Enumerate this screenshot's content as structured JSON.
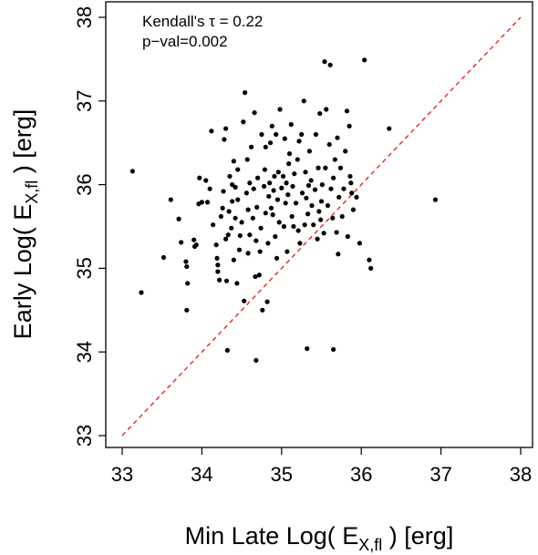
{
  "chart_data": {
    "type": "scatter",
    "title": "",
    "xlabel": "Min Late Log( E_{X,fl} ) [erg]",
    "ylabel": "Early Log( E_{X,fl} ) [erg]",
    "xlabel_parts": {
      "pre": "Min Late Log( E",
      "sub": "X,fl",
      "post": " ) [erg]"
    },
    "ylabel_parts": {
      "pre": "Early Log( E",
      "sub": "X,fl",
      "post": " ) [erg]"
    },
    "xlim": [
      33,
      38
    ],
    "ylim": [
      33,
      38
    ],
    "xticks": [
      33,
      34,
      35,
      36,
      37,
      38
    ],
    "yticks": [
      33,
      34,
      35,
      36,
      37,
      38
    ],
    "grid": false,
    "legend": "none",
    "reference_line": {
      "style": "dashed",
      "color": "#ee2222",
      "from": [
        33,
        33
      ],
      "to": [
        38,
        38
      ]
    },
    "annotations": [
      "Kendall's τ = 0.22",
      "p−val=0.002"
    ],
    "point_color": "#000000",
    "points": [
      [
        33.13,
        36.16
      ],
      [
        33.24,
        34.71
      ],
      [
        33.52,
        35.13
      ],
      [
        33.61,
        35.82
      ],
      [
        33.71,
        35.59
      ],
      [
        33.74,
        35.31
      ],
      [
        33.8,
        35.08
      ],
      [
        33.81,
        35.02
      ],
      [
        33.82,
        34.82
      ],
      [
        33.81,
        34.5
      ],
      [
        33.9,
        35.34
      ],
      [
        33.91,
        35.26
      ],
      [
        33.93,
        35.28
      ],
      [
        33.96,
        35.77
      ],
      [
        33.97,
        36.08
      ],
      [
        34.0,
        35.79
      ],
      [
        34.05,
        36.05
      ],
      [
        34.07,
        35.79
      ],
      [
        34.1,
        35.95
      ],
      [
        34.12,
        36.64
      ],
      [
        34.14,
        35.52
      ],
      [
        34.18,
        35.28
      ],
      [
        34.19,
        35.12
      ],
      [
        34.2,
        35.04
      ],
      [
        34.2,
        34.96
      ],
      [
        34.22,
        34.86
      ],
      [
        34.24,
        35.62
      ],
      [
        34.26,
        35.72
      ],
      [
        34.27,
        35.92
      ],
      [
        34.28,
        36.54
      ],
      [
        34.3,
        36.67
      ],
      [
        34.3,
        35.35
      ],
      [
        34.32,
        34.02
      ],
      [
        34.31,
        34.85
      ],
      [
        34.33,
        35.4
      ],
      [
        34.35,
        36.1
      ],
      [
        34.37,
        35.48
      ],
      [
        34.38,
        35.8
      ],
      [
        34.38,
        36.0
      ],
      [
        34.4,
        36.28
      ],
      [
        34.4,
        35.1
      ],
      [
        34.42,
        35.6
      ],
      [
        34.42,
        35.97
      ],
      [
        34.44,
        34.82
      ],
      [
        34.45,
        35.82
      ],
      [
        34.45,
        36.18
      ],
      [
        34.48,
        35.39
      ],
      [
        34.5,
        35.55
      ],
      [
        34.52,
        36.75
      ],
      [
        34.54,
        37.1
      ],
      [
        34.53,
        34.61
      ],
      [
        34.56,
        35.9
      ],
      [
        34.57,
        36.3
      ],
      [
        34.58,
        35.18
      ],
      [
        34.58,
        35.7
      ],
      [
        34.6,
        36.02
      ],
      [
        34.6,
        35.4
      ],
      [
        34.62,
        36.45
      ],
      [
        34.64,
        35.6
      ],
      [
        34.65,
        35.95
      ],
      [
        34.66,
        36.86
      ],
      [
        34.67,
        34.9
      ],
      [
        34.68,
        33.9
      ],
      [
        34.69,
        35.73
      ],
      [
        34.7,
        36.08
      ],
      [
        34.72,
        34.92
      ],
      [
        34.73,
        35.2
      ],
      [
        34.74,
        35.48
      ],
      [
        34.75,
        36.6
      ],
      [
        34.76,
        34.5
      ],
      [
        34.78,
        35.98
      ],
      [
        34.79,
        36.18
      ],
      [
        34.8,
        35.66
      ],
      [
        34.8,
        36.45
      ],
      [
        34.82,
        34.6
      ],
      [
        34.83,
        35.3
      ],
      [
        34.84,
        35.86
      ],
      [
        34.85,
        36.02
      ],
      [
        34.86,
        36.5
      ],
      [
        34.87,
        35.72
      ],
      [
        34.88,
        36.7
      ],
      [
        34.9,
        35.93
      ],
      [
        34.91,
        36.1
      ],
      [
        34.92,
        35.38
      ],
      [
        34.93,
        36.6
      ],
      [
        34.94,
        35.12
      ],
      [
        34.95,
        35.82
      ],
      [
        34.96,
        36.15
      ],
      [
        34.97,
        35.55
      ],
      [
        34.98,
        36.9
      ],
      [
        35.0,
        35.96
      ],
      [
        35.02,
        36.1
      ],
      [
        35.03,
        35.5
      ],
      [
        35.04,
        36.55
      ],
      [
        35.05,
        35.78
      ],
      [
        35.06,
        36.02
      ],
      [
        35.07,
        35.2
      ],
      [
        35.08,
        35.88
      ],
      [
        35.1,
        36.37
      ],
      [
        35.12,
        36.72
      ],
      [
        35.13,
        35.62
      ],
      [
        35.14,
        35.98
      ],
      [
        35.15,
        35.5
      ],
      [
        35.16,
        36.13
      ],
      [
        35.18,
        35.78
      ],
      [
        35.2,
        36.3
      ],
      [
        35.21,
        35.45
      ],
      [
        35.22,
        36.52
      ],
      [
        35.23,
        35.3
      ],
      [
        35.25,
        36.6
      ],
      [
        35.26,
        35.9
      ],
      [
        35.28,
        37.0
      ],
      [
        35.29,
        35.52
      ],
      [
        35.3,
        36.15
      ],
      [
        35.31,
        35.84
      ],
      [
        35.32,
        34.04
      ],
      [
        35.33,
        35.65
      ],
      [
        35.35,
        36.4
      ],
      [
        35.37,
        36.05
      ],
      [
        35.38,
        35.75
      ],
      [
        35.4,
        35.52
      ],
      [
        35.42,
        35.94
      ],
      [
        35.43,
        36.6
      ],
      [
        35.45,
        35.35
      ],
      [
        35.46,
        36.2
      ],
      [
        35.48,
        36.85
      ],
      [
        35.49,
        35.58
      ],
      [
        35.5,
        35.8
      ],
      [
        35.51,
        36.0
      ],
      [
        35.53,
        35.42
      ],
      [
        35.54,
        37.47
      ],
      [
        35.55,
        36.2
      ],
      [
        35.56,
        36.9
      ],
      [
        35.58,
        35.75
      ],
      [
        35.6,
        36.48
      ],
      [
        35.61,
        37.43
      ],
      [
        35.62,
        35.95
      ],
      [
        35.64,
        35.6
      ],
      [
        35.65,
        36.08
      ],
      [
        35.65,
        34.03
      ],
      [
        35.67,
        36.3
      ],
      [
        35.69,
        35.43
      ],
      [
        35.7,
        36.56
      ],
      [
        35.72,
        35.85
      ],
      [
        35.74,
        36.2
      ],
      [
        35.76,
        35.62
      ],
      [
        35.78,
        35.95
      ],
      [
        35.8,
        36.4
      ],
      [
        35.82,
        36.88
      ],
      [
        35.83,
        35.38
      ],
      [
        35.85,
        36.7
      ],
      [
        35.86,
        36.1
      ],
      [
        35.87,
        36.02
      ],
      [
        35.88,
        35.9
      ],
      [
        35.9,
        35.7
      ],
      [
        35.94,
        35.85
      ],
      [
        35.98,
        35.3
      ],
      [
        36.04,
        37.49
      ],
      [
        36.1,
        35.1
      ],
      [
        36.12,
        35.0
      ],
      [
        36.35,
        36.67
      ],
      [
        36.93,
        35.82
      ],
      [
        34.34,
        35.68
      ],
      [
        34.47,
        35.22
      ],
      [
        34.68,
        35.33
      ],
      [
        34.89,
        35.64
      ],
      [
        35.09,
        36.25
      ],
      [
        35.34,
        35.99
      ],
      [
        35.47,
        35.68
      ],
      [
        35.71,
        35.17
      ]
    ]
  }
}
